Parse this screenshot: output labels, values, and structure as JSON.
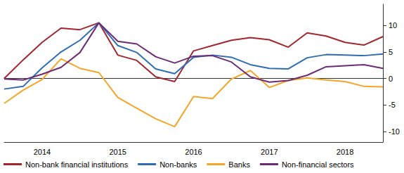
{
  "chart_data": {
    "type": "line",
    "x": [
      2014,
      2014.25,
      2014.5,
      2014.75,
      2015,
      2015.25,
      2015.5,
      2015.75,
      2016,
      2016.25,
      2016.5,
      2016.75,
      2017,
      2017.25,
      2017.5,
      2017.75,
      2018,
      2018.25,
      2018.5,
      2018.75,
      2019
    ],
    "xlim": [
      2014,
      2019
    ],
    "xticks": [
      {
        "value": 2014.5,
        "label": "2014"
      },
      {
        "value": 2015.5,
        "label": "2015"
      },
      {
        "value": 2016.5,
        "label": "2016"
      },
      {
        "value": 2017.5,
        "label": "2017"
      },
      {
        "value": 2018.5,
        "label": "2018"
      }
    ],
    "ylim": [
      -12,
      14
    ],
    "yticks": [
      -10,
      -5,
      0,
      5,
      10
    ],
    "grid": false,
    "legend": "bottom",
    "series": [
      {
        "name": "Non-bank financial institutions",
        "color": "#a3262e",
        "values": [
          0,
          3.5,
          6.8,
          9.5,
          9.2,
          10.5,
          4.4,
          3.4,
          0.3,
          -0.6,
          5.2,
          6.2,
          7.2,
          7.7,
          7.3,
          5.9,
          8.6,
          8.0,
          6.8,
          6.3,
          7.9
        ]
      },
      {
        "name": "Non-banks",
        "color": "#2e6db4",
        "values": [
          -2.0,
          -1.5,
          2.0,
          5.0,
          7.2,
          10.5,
          6.2,
          4.9,
          1.8,
          0.9,
          4.0,
          4.4,
          4.0,
          2.6,
          1.9,
          1.8,
          3.9,
          4.5,
          4.4,
          4.3,
          4.6
        ]
      },
      {
        "name": "Banks",
        "color": "#f4a629",
        "values": [
          -4.7,
          -2.2,
          -0.2,
          3.7,
          1.9,
          1.1,
          -3.6,
          -5.6,
          -7.6,
          -9.1,
          -3.4,
          -3.8,
          -0.1,
          1.5,
          -1.7,
          -0.4,
          0.1,
          -0.3,
          -0.6,
          -1.5,
          -1.6
        ]
      },
      {
        "name": "Non-financial sectors",
        "color": "#6b2c74",
        "values": [
          -0.1,
          -0.3,
          0.8,
          2.1,
          4.9,
          10.5,
          7.0,
          6.5,
          4.1,
          2.9,
          4.2,
          4.3,
          3.1,
          0.3,
          -0.7,
          -0.4,
          0.6,
          2.2,
          2.4,
          2.6,
          1.9
        ]
      }
    ]
  }
}
